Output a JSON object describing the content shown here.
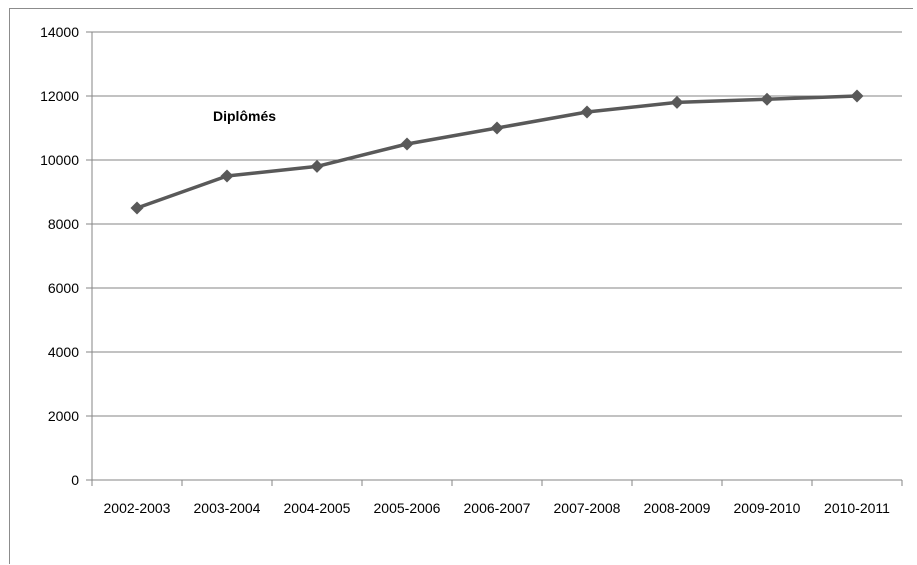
{
  "chart_data": {
    "type": "line",
    "categories": [
      "2002-2003",
      "2003-2004",
      "2004-2005",
      "2005-2006",
      "2006-2007",
      "2007-2008",
      "2008-2009",
      "2009-2010",
      "2010-2011"
    ],
    "series": [
      {
        "name": "Diplômés",
        "values": [
          8500,
          9500,
          9800,
          10500,
          11000,
          11500,
          11800,
          11900,
          12000
        ]
      }
    ],
    "yticks": [
      "0",
      "2000",
      "4000",
      "6000",
      "8000",
      "10000",
      "12000",
      "14000"
    ],
    "ylim": [
      0,
      14000
    ],
    "grid": true,
    "legend": "none",
    "colors": {
      "line": "#595959",
      "grid": "#868686",
      "axis": "#868686"
    }
  }
}
